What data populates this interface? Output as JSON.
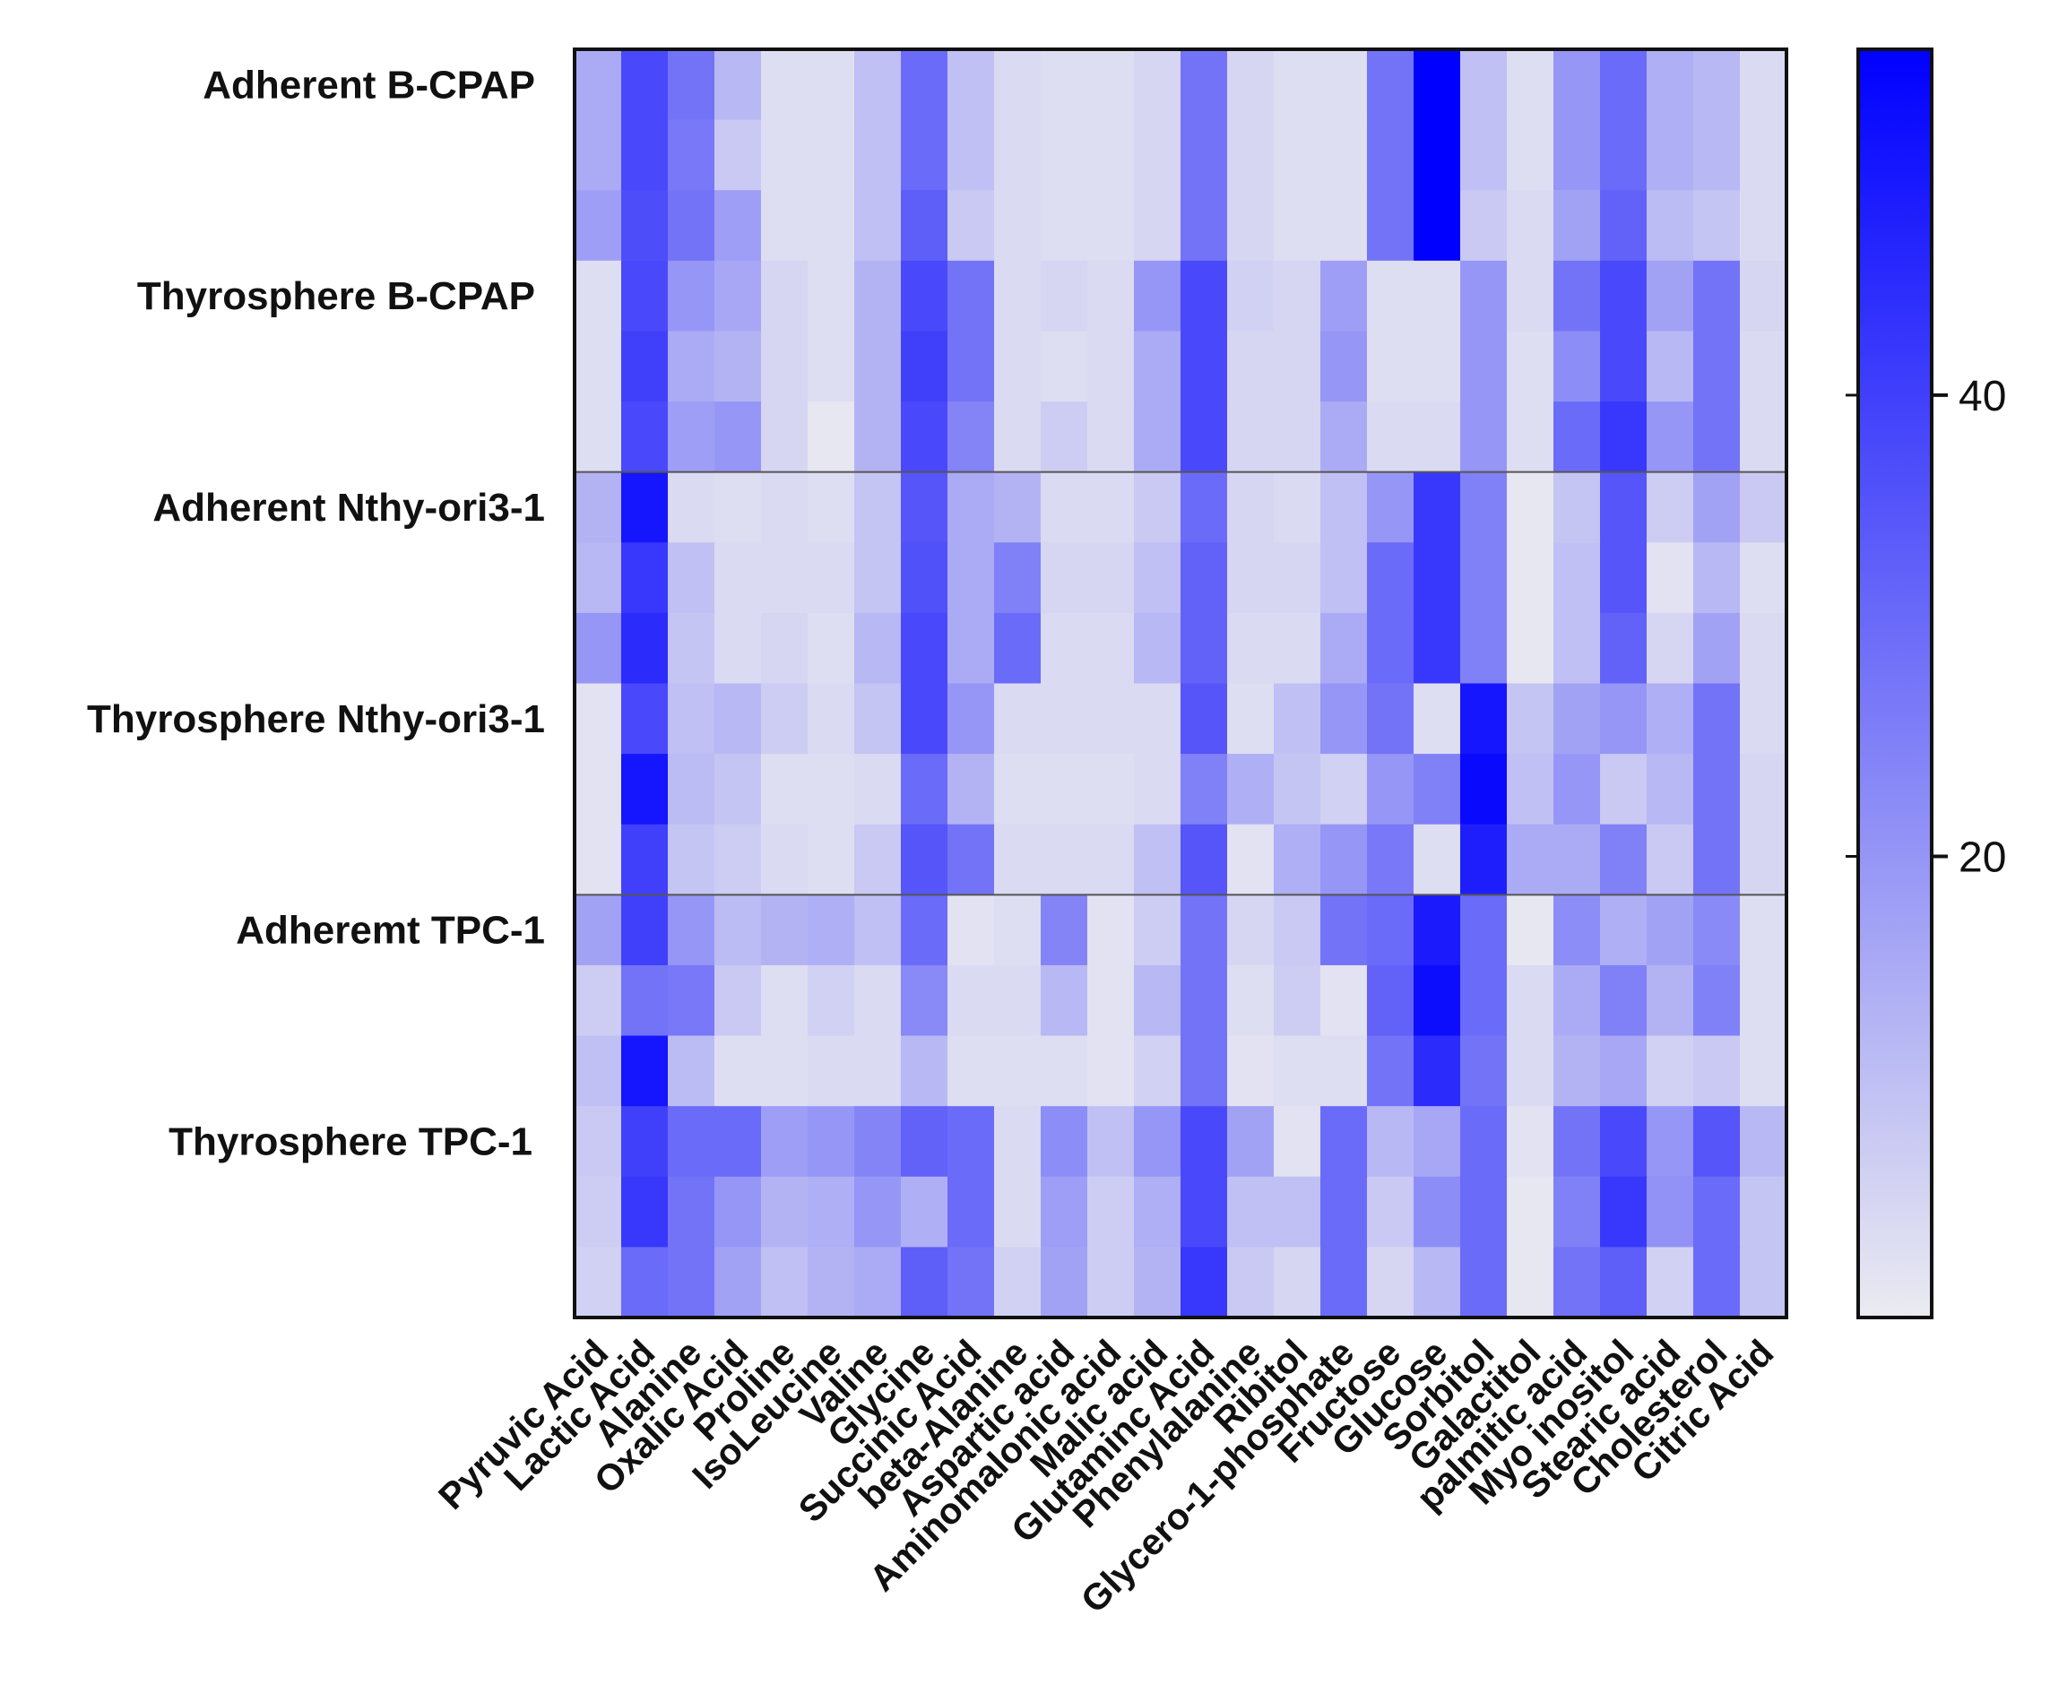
{
  "chart_data": {
    "type": "heatmap",
    "title": "",
    "xlabel": "",
    "ylabel": "",
    "columns": [
      "Pyruvic Acid",
      "Lactic Acid",
      "Alanine",
      "Oxalic Acid",
      "Proline",
      "IsoLeucine",
      "Valine",
      "Glycine",
      "Succinic Acid",
      "beta-Alanine",
      "Aspartic acid",
      "Aminomalonic acid",
      "Malic acid",
      "Glutaminc Acid",
      "Phenylalanine",
      "Ribitol",
      "Glycero-1-phosphate",
      "Fructose",
      "Glucose",
      "Sorbitol",
      "Galactitol",
      "palmitic acid",
      "Myo inositol",
      "Stearic acid",
      "Cholesterol",
      "Citric Acid"
    ],
    "row_groups": [
      "Adherent B-CPAP",
      "Thyrosphere B-CPAP",
      "Adherent Nthy-ori3-1",
      "Thyrosphere Nthy-ori3-1",
      "Adheremt TPC-1",
      "Thyrosphere TPC-1"
    ],
    "group_separators_after_rows": [
      6,
      12
    ],
    "color_scale": {
      "min": 0,
      "max": 55,
      "low_color": "#ebebf1",
      "high_color": "#0000ff",
      "ticks": [
        20,
        40
      ],
      "tick_labels": [
        "20",
        "40"
      ]
    },
    "values": [
      [
        15,
        38,
        28,
        12,
        3,
        3,
        10,
        30,
        10,
        4,
        3,
        3,
        5,
        28,
        5,
        3,
        3,
        28,
        55,
        10,
        3,
        20,
        30,
        14,
        12,
        4
      ],
      [
        15,
        38,
        27,
        8,
        3,
        3,
        10,
        30,
        10,
        4,
        3,
        3,
        5,
        28,
        5,
        3,
        3,
        28,
        55,
        10,
        3,
        20,
        30,
        14,
        12,
        4
      ],
      [
        18,
        37,
        28,
        18,
        3,
        3,
        10,
        33,
        8,
        4,
        3,
        3,
        5,
        28,
        5,
        3,
        3,
        28,
        55,
        8,
        4,
        17,
        32,
        11,
        9,
        4
      ],
      [
        3,
        38,
        20,
        16,
        5,
        3,
        13,
        38,
        28,
        4,
        5,
        4,
        20,
        38,
        6,
        5,
        18,
        3,
        3,
        20,
        4,
        28,
        38,
        17,
        28,
        5
      ],
      [
        3,
        40,
        15,
        13,
        5,
        3,
        13,
        40,
        28,
        4,
        3,
        4,
        15,
        38,
        5,
        5,
        20,
        3,
        3,
        20,
        3,
        22,
        38,
        12,
        28,
        4
      ],
      [
        3,
        38,
        18,
        20,
        5,
        1,
        13,
        38,
        24,
        4,
        7,
        4,
        15,
        38,
        5,
        5,
        15,
        4,
        4,
        20,
        3,
        30,
        42,
        20,
        28,
        4
      ],
      [
        13,
        50,
        4,
        3,
        4,
        3,
        9,
        35,
        15,
        13,
        4,
        4,
        8,
        30,
        5,
        4,
        10,
        20,
        42,
        25,
        1,
        9,
        35,
        7,
        17,
        8
      ],
      [
        12,
        42,
        10,
        4,
        4,
        4,
        9,
        36,
        15,
        25,
        5,
        5,
        10,
        32,
        5,
        5,
        10,
        30,
        42,
        25,
        1,
        10,
        35,
        2,
        12,
        3
      ],
      [
        20,
        45,
        9,
        4,
        5,
        3,
        12,
        38,
        15,
        30,
        4,
        4,
        12,
        32,
        4,
        4,
        15,
        30,
        42,
        25,
        1,
        10,
        32,
        5,
        17,
        4
      ],
      [
        2,
        38,
        10,
        12,
        7,
        4,
        9,
        38,
        20,
        4,
        4,
        4,
        4,
        35,
        3,
        10,
        20,
        28,
        3,
        50,
        9,
        17,
        20,
        14,
        28,
        4
      ],
      [
        2,
        50,
        11,
        9,
        3,
        3,
        4,
        30,
        13,
        3,
        3,
        3,
        4,
        25,
        14,
        9,
        6,
        20,
        25,
        53,
        10,
        20,
        8,
        12,
        28,
        5
      ],
      [
        2,
        40,
        9,
        7,
        4,
        3,
        8,
        35,
        28,
        4,
        4,
        4,
        10,
        35,
        2,
        14,
        20,
        27,
        3,
        48,
        15,
        15,
        25,
        8,
        28,
        5
      ],
      [
        17,
        40,
        20,
        11,
        13,
        14,
        10,
        30,
        2,
        3,
        24,
        2,
        7,
        28,
        5,
        8,
        28,
        30,
        49,
        30,
        1,
        22,
        14,
        17,
        23,
        3
      ],
      [
        7,
        28,
        27,
        8,
        3,
        6,
        4,
        23,
        4,
        4,
        12,
        2,
        12,
        28,
        3,
        7,
        2,
        32,
        52,
        30,
        4,
        15,
        25,
        13,
        25,
        3
      ],
      [
        10,
        50,
        11,
        3,
        3,
        4,
        4,
        12,
        3,
        3,
        3,
        2,
        6,
        28,
        2,
        3,
        3,
        28,
        45,
        28,
        4,
        13,
        16,
        6,
        8,
        3
      ],
      [
        8,
        40,
        30,
        30,
        18,
        20,
        24,
        32,
        30,
        4,
        22,
        10,
        20,
        38,
        17,
        2,
        30,
        12,
        16,
        30,
        2,
        28,
        38,
        20,
        35,
        12
      ],
      [
        7,
        42,
        28,
        20,
        13,
        14,
        20,
        14,
        30,
        4,
        18,
        7,
        14,
        38,
        10,
        10,
        30,
        8,
        22,
        30,
        1,
        25,
        42,
        21,
        30,
        9
      ],
      [
        6,
        30,
        28,
        17,
        10,
        13,
        15,
        33,
        28,
        6,
        17,
        7,
        13,
        42,
        8,
        5,
        30,
        5,
        12,
        30,
        1,
        28,
        33,
        6,
        30,
        9
      ]
    ]
  }
}
